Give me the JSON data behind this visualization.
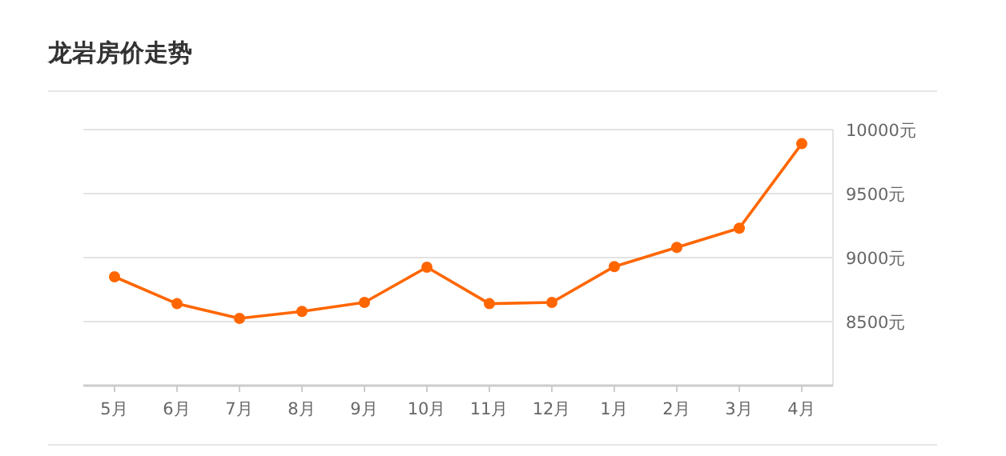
{
  "chart_data": {
    "type": "line",
    "title": "龙岩房价走势",
    "categories": [
      "5月",
      "6月",
      "7月",
      "8月",
      "9月",
      "10月",
      "11月",
      "12月",
      "1月",
      "2月",
      "3月",
      "4月"
    ],
    "series": [
      {
        "color": "#ff6600",
        "values": [
          8850,
          8640,
          8525,
          8580,
          8650,
          8925,
          8640,
          8650,
          8930,
          9080,
          9230,
          9890
        ]
      }
    ],
    "ylim": [
      8000,
      10000
    ],
    "yticks": [
      {
        "value": 8500,
        "label": "8500元"
      },
      {
        "value": 9000,
        "label": "9000元"
      },
      {
        "value": 9500,
        "label": "9500元"
      },
      {
        "value": 10000,
        "label": "10000元"
      }
    ],
    "grid": "y",
    "marker": "circle",
    "line_style": "solid"
  }
}
